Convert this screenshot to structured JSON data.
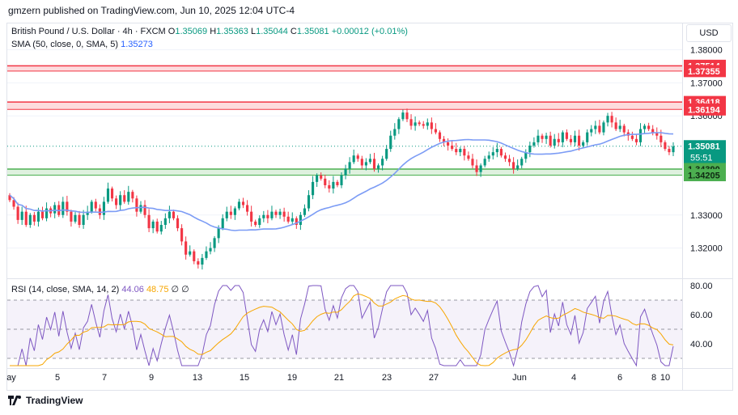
{
  "header": {
    "publisher_text": "gmzern published on TradingView.com, Jun 10, 2025 12:04 UTC-4"
  },
  "legend": {
    "symbol": "British Pound / U.S. Dollar · 4h · FXCM",
    "open_label": "O",
    "open": "1.35069",
    "high_label": "H",
    "high": "1.35363",
    "low_label": "L",
    "low": "1.35044",
    "close_label": "C",
    "close": "1.35081",
    "change": "+0.00012 (+0.01%)",
    "sma_label": "SMA (50, close, 0, SMA, 5)",
    "sma_value": "1.35273",
    "rsi_label": "RSI (14, close, SMA, 14, 2)",
    "rsi_value": "44.06",
    "rsi_ma_value": "48.75",
    "rsi_extra": "∅ ∅"
  },
  "currency_button": "USD",
  "footer": {
    "brand": "TradingView"
  },
  "colors": {
    "up": "#089981",
    "down": "#f23645",
    "sma": "#2962ff",
    "resistance": "#f23645",
    "support": "#4caf50",
    "rsi": "#7e57c2",
    "rsi_ma": "#f7a600"
  },
  "chart_data": [
    {
      "type": "candlestick",
      "title": "British Pound / U.S. Dollar · 4h · FXCM",
      "x_tick_labels": [
        "ay",
        "5",
        "7",
        "9",
        "13",
        "15",
        "19",
        "21",
        "23",
        "27",
        "Jun",
        "4",
        "6",
        "8",
        "10"
      ],
      "y_tick_labels": [
        "1.38000",
        "1.37000",
        "1.36000",
        "1.33000",
        "1.32000"
      ],
      "ylim": [
        1.311,
        1.3843
      ],
      "grid": true,
      "price_labels": [
        {
          "value": 1.37514,
          "text": "1.37514",
          "kind": "resistance"
        },
        {
          "value": 1.37355,
          "text": "1.37355",
          "kind": "resistance"
        },
        {
          "value": 1.36418,
          "text": "1.36418",
          "kind": "resistance"
        },
        {
          "value": 1.36194,
          "text": "1.36194",
          "kind": "resistance"
        },
        {
          "value": 1.35081,
          "text": "1.35081",
          "kind": "last"
        },
        {
          "value": 1.3439,
          "text": "1.34390",
          "kind": "support"
        },
        {
          "value": 1.34205,
          "text": "1.34205",
          "kind": "support"
        }
      ],
      "countdown": "55:51",
      "zones": [
        {
          "kind": "resistance",
          "from": 1.37355,
          "to": 1.37514
        },
        {
          "kind": "resistance",
          "from": 1.36194,
          "to": 1.36418
        },
        {
          "kind": "support",
          "from": 1.34205,
          "to": 1.3439
        }
      ],
      "last_price": 1.35081,
      "close_series": [
        1.3345,
        1.3325,
        1.3285,
        1.331,
        1.327,
        1.33,
        1.328,
        1.331,
        1.329,
        1.332,
        1.3305,
        1.333,
        1.33,
        1.334,
        1.331,
        1.328,
        1.33,
        1.327,
        1.33,
        1.331,
        1.334,
        1.332,
        1.33,
        1.334,
        1.338,
        1.335,
        1.333,
        1.336,
        1.334,
        1.337,
        1.335,
        1.331,
        1.333,
        1.33,
        1.326,
        1.328,
        1.325,
        1.327,
        1.329,
        1.331,
        1.329,
        1.326,
        1.322,
        1.318,
        1.319,
        1.316,
        1.315,
        1.317,
        1.319,
        1.32,
        1.323,
        1.326,
        1.329,
        1.331,
        1.33,
        1.332,
        1.334,
        1.333,
        1.331,
        1.328,
        1.327,
        1.329,
        1.33,
        1.329,
        1.331,
        1.33,
        1.331,
        1.3295,
        1.328,
        1.329,
        1.327,
        1.33,
        1.332,
        1.336,
        1.34,
        1.342,
        1.341,
        1.339,
        1.338,
        1.34,
        1.339,
        1.342,
        1.344,
        1.346,
        1.348,
        1.347,
        1.345,
        1.346,
        1.347,
        1.344,
        1.345,
        1.347,
        1.35,
        1.354,
        1.356,
        1.359,
        1.361,
        1.359,
        1.357,
        1.358,
        1.3575,
        1.357,
        1.358,
        1.356,
        1.355,
        1.353,
        1.352,
        1.351,
        1.35,
        1.349,
        1.35,
        1.348,
        1.347,
        1.345,
        1.343,
        1.345,
        1.347,
        1.348,
        1.349,
        1.35,
        1.348,
        1.347,
        1.346,
        1.344,
        1.345,
        1.347,
        1.349,
        1.351,
        1.352,
        1.354,
        1.353,
        1.354,
        1.351,
        1.353,
        1.352,
        1.355,
        1.353,
        1.352,
        1.354,
        1.351,
        1.352,
        1.355,
        1.356,
        1.357,
        1.355,
        1.358,
        1.36,
        1.358,
        1.356,
        1.357,
        1.355,
        1.354,
        1.353,
        1.352,
        1.356,
        1.357,
        1.356,
        1.355,
        1.354,
        1.352,
        1.35,
        1.349,
        1.3508
      ],
      "sma_series_label": "SMA (50, close, 0, SMA, 5)"
    },
    {
      "type": "line",
      "title": "RSI (14, close, SMA, 14, 2)",
      "y_tick_labels": [
        "80.00",
        "60.00",
        "40.00"
      ],
      "ylim": [
        23,
        82
      ],
      "bands": [
        30,
        50,
        70
      ],
      "series": [
        {
          "name": "RSI (14, close, SMA, 14, 2)",
          "last": 44.06
        },
        {
          "name": "RSI-based MA",
          "last": 48.75
        }
      ]
    }
  ]
}
